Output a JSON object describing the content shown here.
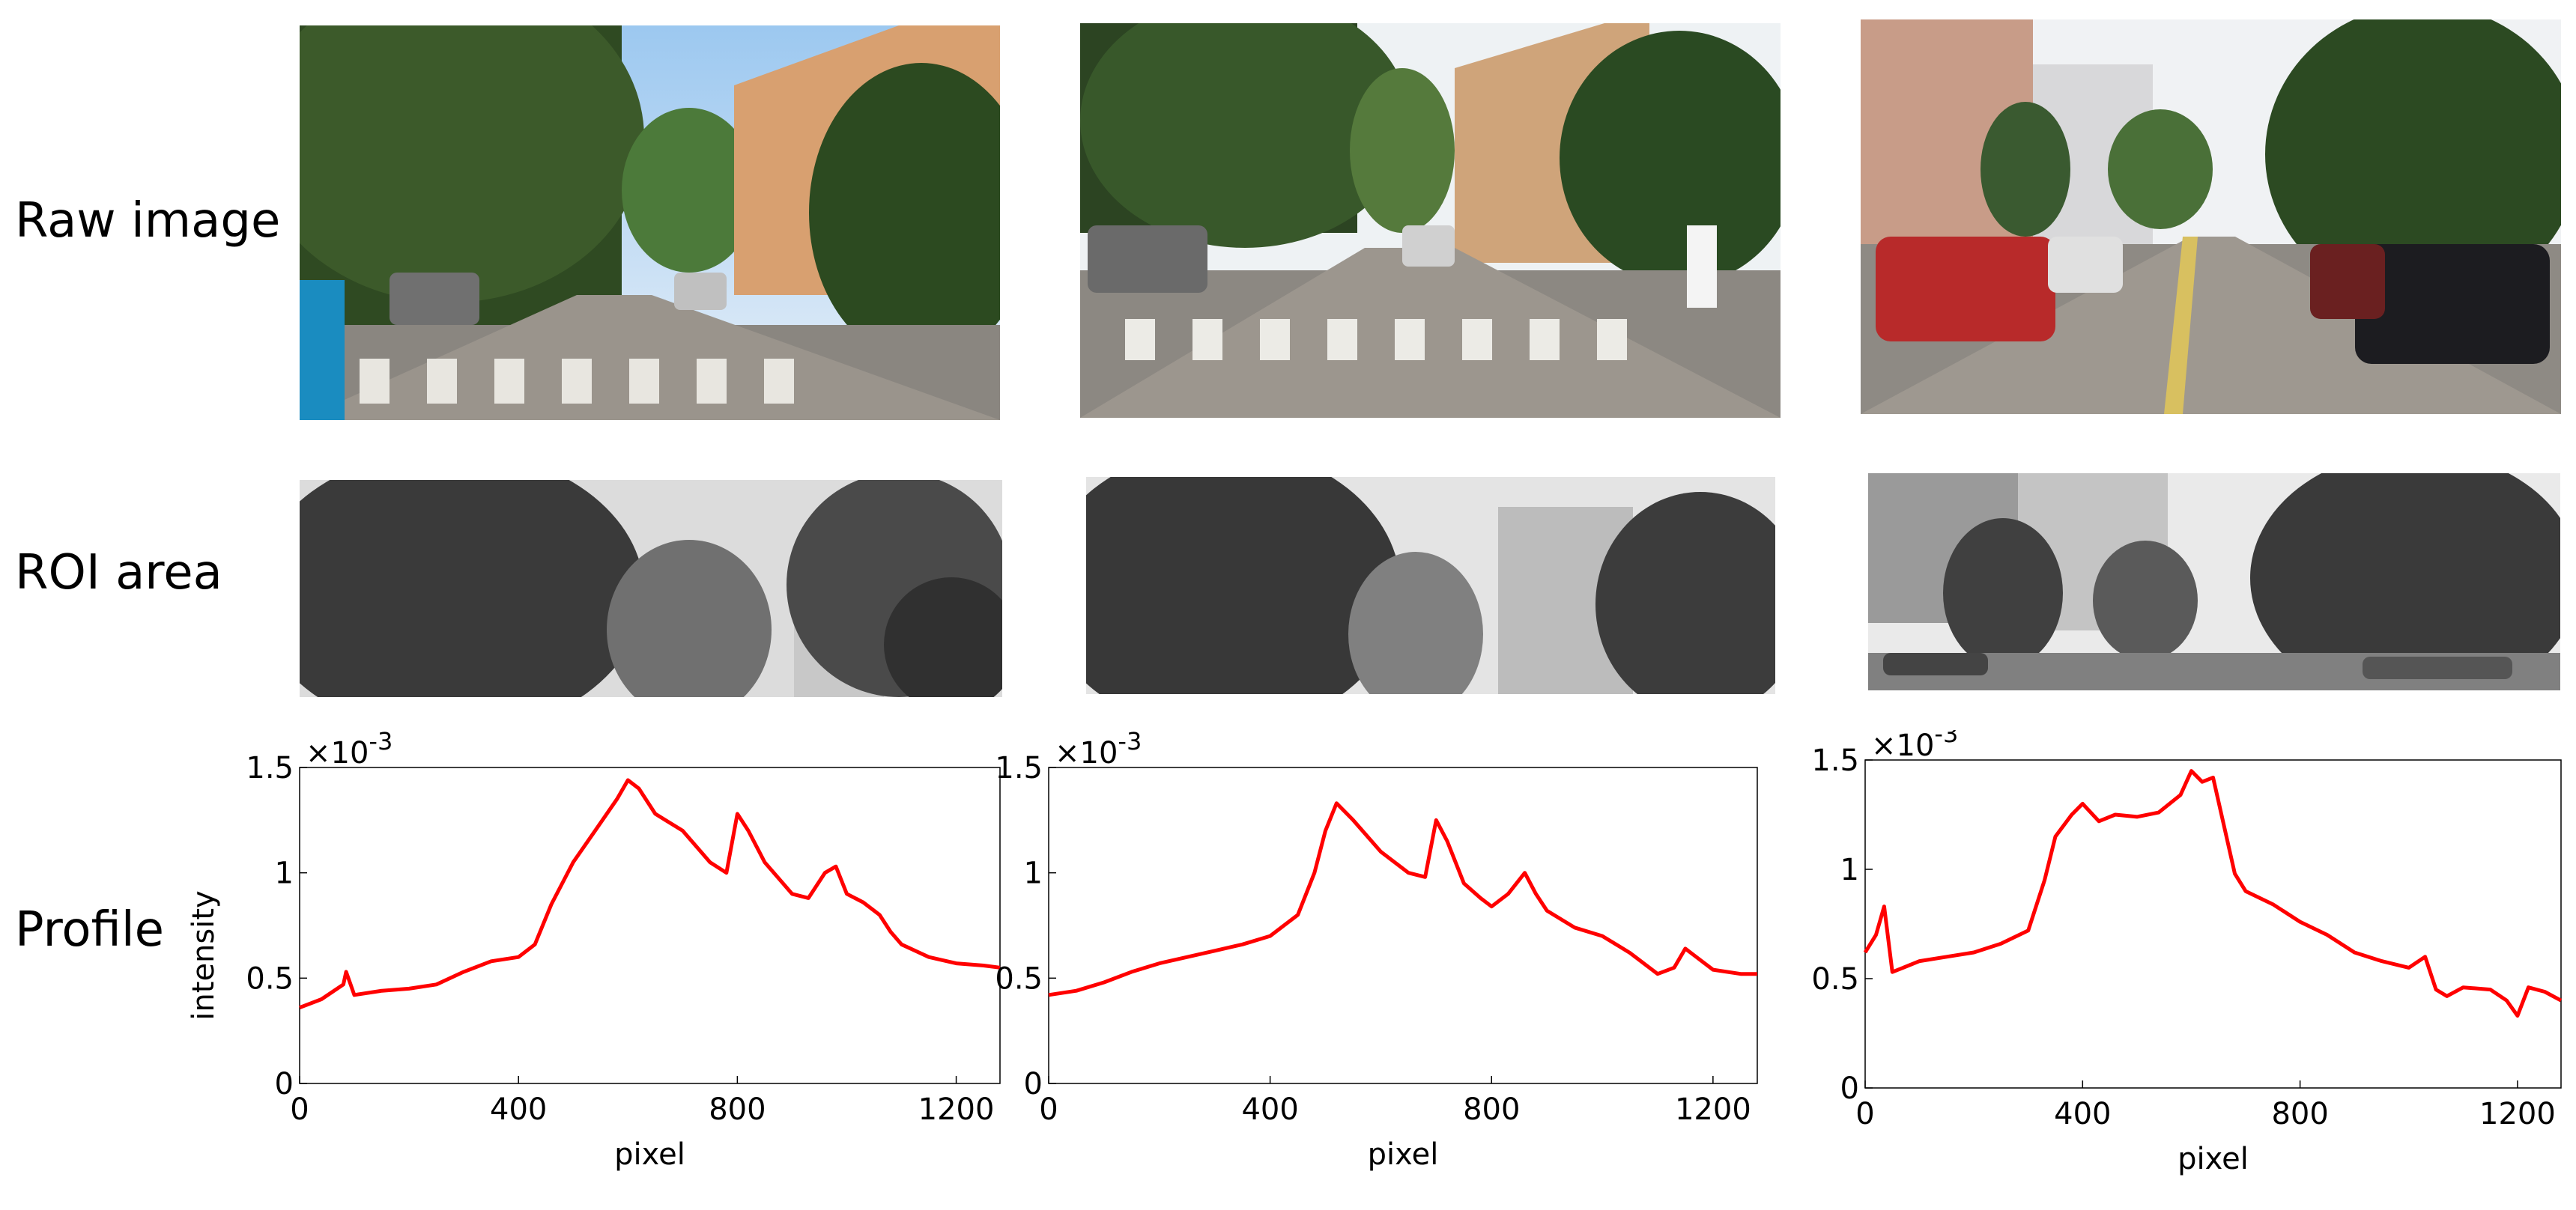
{
  "rows": {
    "raw": "Raw image",
    "roi": "ROI area",
    "profile": "Profile"
  },
  "chart_data": [
    {
      "type": "line",
      "xlabel": "pixel",
      "ylabel": "intensity",
      "y_exponent": "×10",
      "y_exponent_power": "-3",
      "xlim": [
        0,
        1280
      ],
      "ylim": [
        0,
        1.5
      ],
      "xticks": [
        "0",
        "400",
        "800",
        "1200"
      ],
      "yticks": [
        "0",
        "0.5",
        "1",
        "1.5"
      ],
      "series": [
        {
          "color": "#ff0000",
          "x": [
            0,
            40,
            80,
            85,
            100,
            150,
            200,
            250,
            300,
            350,
            400,
            430,
            460,
            500,
            540,
            580,
            600,
            620,
            650,
            700,
            750,
            780,
            800,
            820,
            850,
            880,
            900,
            930,
            960,
            980,
            1000,
            1030,
            1060,
            1080,
            1100,
            1150,
            1200,
            1250,
            1280
          ],
          "y": [
            0.36,
            0.4,
            0.47,
            0.53,
            0.42,
            0.44,
            0.45,
            0.47,
            0.53,
            0.58,
            0.6,
            0.66,
            0.85,
            1.05,
            1.2,
            1.35,
            1.44,
            1.4,
            1.28,
            1.2,
            1.05,
            1.0,
            1.28,
            1.2,
            1.05,
            0.96,
            0.9,
            0.88,
            1.0,
            1.03,
            0.9,
            0.86,
            0.8,
            0.72,
            0.66,
            0.6,
            0.57,
            0.56,
            0.55
          ]
        }
      ]
    },
    {
      "type": "line",
      "xlabel": "pixel",
      "ylabel": "",
      "y_exponent": "×10",
      "y_exponent_power": "-3",
      "xlim": [
        0,
        1280
      ],
      "ylim": [
        0,
        1.5
      ],
      "xticks": [
        "0",
        "400",
        "800",
        "1200"
      ],
      "yticks": [
        "0",
        "0.5",
        "1",
        "1.5"
      ],
      "series": [
        {
          "color": "#ff0000",
          "x": [
            0,
            50,
            100,
            150,
            200,
            250,
            300,
            350,
            400,
            450,
            480,
            500,
            520,
            550,
            600,
            650,
            680,
            700,
            720,
            750,
            780,
            800,
            830,
            860,
            880,
            900,
            950,
            1000,
            1050,
            1100,
            1130,
            1150,
            1170,
            1200,
            1250,
            1280
          ],
          "y": [
            0.42,
            0.44,
            0.48,
            0.53,
            0.57,
            0.6,
            0.63,
            0.66,
            0.7,
            0.8,
            1.0,
            1.2,
            1.33,
            1.25,
            1.1,
            1.0,
            0.98,
            1.25,
            1.15,
            0.95,
            0.88,
            0.84,
            0.9,
            1.0,
            0.9,
            0.82,
            0.74,
            0.7,
            0.62,
            0.52,
            0.55,
            0.64,
            0.6,
            0.54,
            0.52,
            0.52
          ]
        }
      ]
    },
    {
      "type": "line",
      "xlabel": "pixel",
      "ylabel": "",
      "y_exponent": "×10",
      "y_exponent_power": "-3",
      "xlim": [
        0,
        1280
      ],
      "ylim": [
        0,
        1.5
      ],
      "xticks": [
        "0",
        "400",
        "800",
        "1200"
      ],
      "yticks": [
        "0",
        "0.5",
        "1",
        "1.5"
      ],
      "series": [
        {
          "color": "#ff0000",
          "x": [
            0,
            20,
            35,
            50,
            70,
            100,
            150,
            200,
            250,
            300,
            330,
            350,
            380,
            400,
            430,
            460,
            500,
            540,
            580,
            600,
            620,
            640,
            660,
            680,
            700,
            750,
            800,
            850,
            900,
            950,
            1000,
            1030,
            1050,
            1070,
            1100,
            1150,
            1180,
            1200,
            1220,
            1250,
            1280
          ],
          "y": [
            0.62,
            0.7,
            0.83,
            0.53,
            0.55,
            0.58,
            0.6,
            0.62,
            0.66,
            0.72,
            0.95,
            1.15,
            1.25,
            1.3,
            1.22,
            1.25,
            1.24,
            1.26,
            1.34,
            1.45,
            1.4,
            1.42,
            1.2,
            0.98,
            0.9,
            0.84,
            0.76,
            0.7,
            0.62,
            0.58,
            0.55,
            0.6,
            0.45,
            0.42,
            0.46,
            0.45,
            0.4,
            0.33,
            0.46,
            0.44,
            0.4
          ]
        }
      ]
    }
  ]
}
